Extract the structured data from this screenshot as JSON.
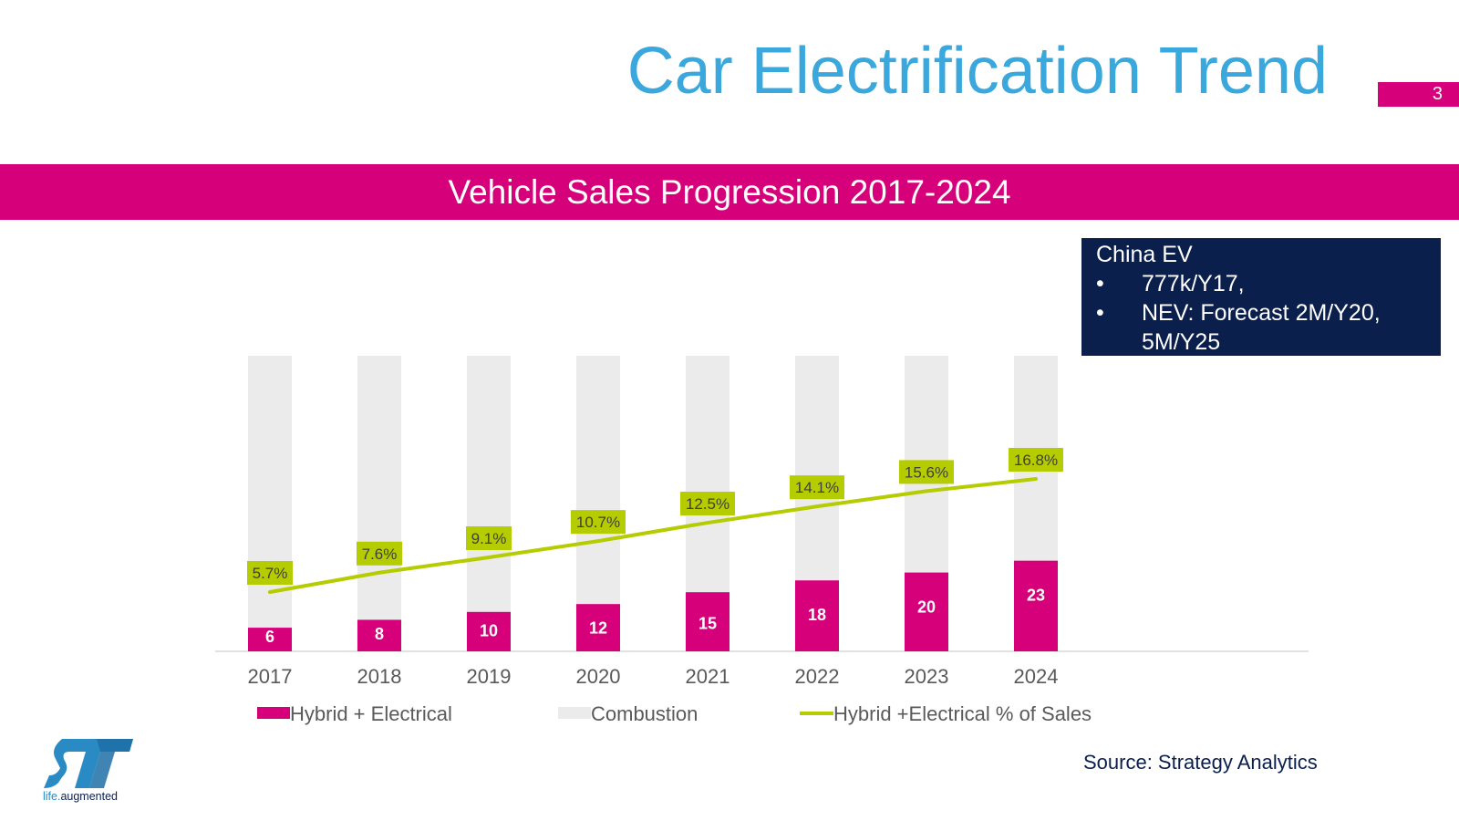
{
  "slide": {
    "title": "Car Electrification Trend",
    "page_number": "3",
    "banner": "Vehicle Sales Progression 2017-2024",
    "source": "Source: Strategy Analytics",
    "logo_text": "life.augmented"
  },
  "info_box": {
    "heading": "China EV",
    "items": [
      "777k/Y17,",
      "NEV: Forecast 2M/Y20, 5M/Y25"
    ]
  },
  "colors": {
    "accent_magenta": "#d6007a",
    "title_blue": "#3aa8dc",
    "navy": "#0b1f4d",
    "combustion_gray": "#ebebeb",
    "line_green": "#b5cc00"
  },
  "chart_data": {
    "type": "bar",
    "stacked": true,
    "categories": [
      "2017",
      "2018",
      "2019",
      "2020",
      "2021",
      "2022",
      "2023",
      "2024"
    ],
    "series": [
      {
        "name": "Hybrid + Electrical",
        "kind": "bar",
        "values": [
          6,
          8,
          10,
          12,
          15,
          18,
          20,
          23
        ],
        "labels": [
          "6",
          "8",
          "10",
          "12",
          "15",
          "18",
          "20",
          "23"
        ]
      },
      {
        "name": "Combustion",
        "kind": "bar",
        "values": [
          69,
          67,
          65,
          63,
          60,
          57,
          55,
          52
        ]
      },
      {
        "name": "Hybrid +Electrical % of Sales",
        "kind": "line",
        "values": [
          5.7,
          7.6,
          9.1,
          10.7,
          12.5,
          14.1,
          15.6,
          16.8
        ],
        "labels": [
          "5.7%",
          "7.6%",
          "9.1%",
          "10.7%",
          "12.5%",
          "14.1%",
          "15.6%",
          "16.8%"
        ]
      }
    ],
    "legend_position": "bottom",
    "grid": false
  }
}
